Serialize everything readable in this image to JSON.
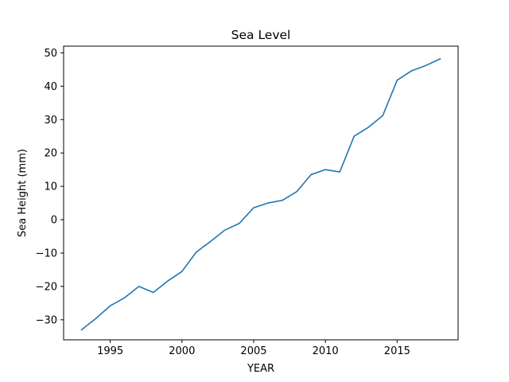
{
  "chart_data": {
    "type": "line",
    "title": "Sea Level",
    "xlabel": "YEAR",
    "ylabel": "Sea Height (mm)",
    "xlim": [
      1991.75,
      2019.25
    ],
    "ylim": [
      -36.0,
      52.0
    ],
    "xticks": [
      1995,
      2000,
      2005,
      2010,
      2015
    ],
    "yticks": [
      -30,
      -20,
      -10,
      0,
      10,
      20,
      30,
      40,
      50
    ],
    "grid": false,
    "series": [
      {
        "color": "#1f77b4",
        "x": [
          1993,
          1994,
          1995,
          1996,
          1997,
          1998,
          1999,
          2000,
          2001,
          2002,
          2003,
          2004,
          2005,
          2006,
          2007,
          2008,
          2009,
          2010,
          2011,
          2012,
          2013,
          2014,
          2015,
          2016,
          2017,
          2018
        ],
        "y": [
          -33.0,
          -29.6,
          -25.8,
          -23.4,
          -20.0,
          -21.8,
          -18.4,
          -15.5,
          -9.7,
          -6.5,
          -3.1,
          -1.1,
          3.6,
          5.0,
          5.8,
          8.4,
          13.5,
          15.0,
          14.3,
          25.0,
          27.7,
          31.2,
          41.8,
          44.6,
          46.2,
          48.2
        ]
      }
    ]
  }
}
